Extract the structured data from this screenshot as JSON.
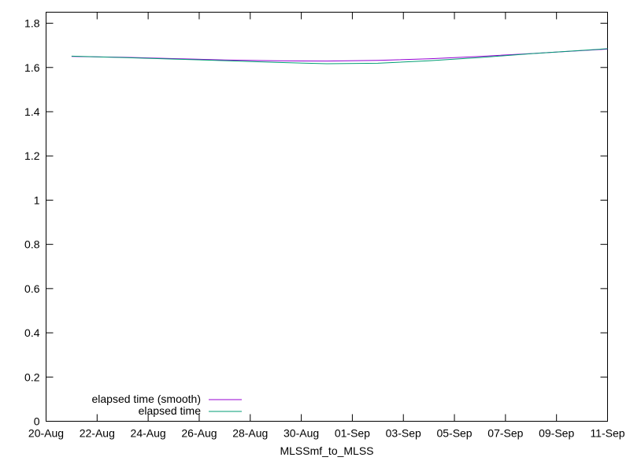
{
  "chart_data": {
    "type": "line",
    "title": "",
    "xlabel": "MLSSmf_to_MLSS",
    "ylabel": "",
    "x_ticks": [
      "20-Aug",
      "22-Aug",
      "24-Aug",
      "26-Aug",
      "28-Aug",
      "30-Aug",
      "01-Sep",
      "03-Sep",
      "05-Sep",
      "07-Sep",
      "09-Sep",
      "11-Sep"
    ],
    "y_ticks": [
      "0",
      "0.2",
      "0.4",
      "0.6",
      "0.8",
      "1",
      "1.2",
      "1.4",
      "1.6",
      "1.8"
    ],
    "xlim": [
      "2023-08-20",
      "2023-09-11"
    ],
    "ylim": [
      0,
      1.85
    ],
    "grid": false,
    "legend_position": "bottom-left",
    "series": [
      {
        "name": "elapsed time (smooth)",
        "color": "#9400d3",
        "points": [
          [
            "2023-08-21",
            1.65
          ],
          [
            "2023-08-23",
            1.646
          ],
          [
            "2023-08-25",
            1.64
          ],
          [
            "2023-08-27",
            1.634
          ],
          [
            "2023-08-29",
            1.63
          ],
          [
            "2023-08-31",
            1.629
          ],
          [
            "2023-09-02",
            1.632
          ],
          [
            "2023-09-04",
            1.639
          ],
          [
            "2023-09-06",
            1.65
          ],
          [
            "2023-09-08",
            1.663
          ],
          [
            "2023-09-11",
            1.683
          ]
        ]
      },
      {
        "name": "elapsed time",
        "color": "#009e73",
        "points": [
          [
            "2023-08-21",
            1.651
          ],
          [
            "2023-08-23",
            1.645
          ],
          [
            "2023-08-25",
            1.638
          ],
          [
            "2023-08-27",
            1.631
          ],
          [
            "2023-08-29",
            1.623
          ],
          [
            "2023-08-31",
            1.617
          ],
          [
            "2023-09-02",
            1.619
          ],
          [
            "2023-09-04",
            1.63
          ],
          [
            "2023-09-06",
            1.645
          ],
          [
            "2023-09-08",
            1.662
          ],
          [
            "2023-09-11",
            1.685
          ]
        ]
      }
    ]
  }
}
